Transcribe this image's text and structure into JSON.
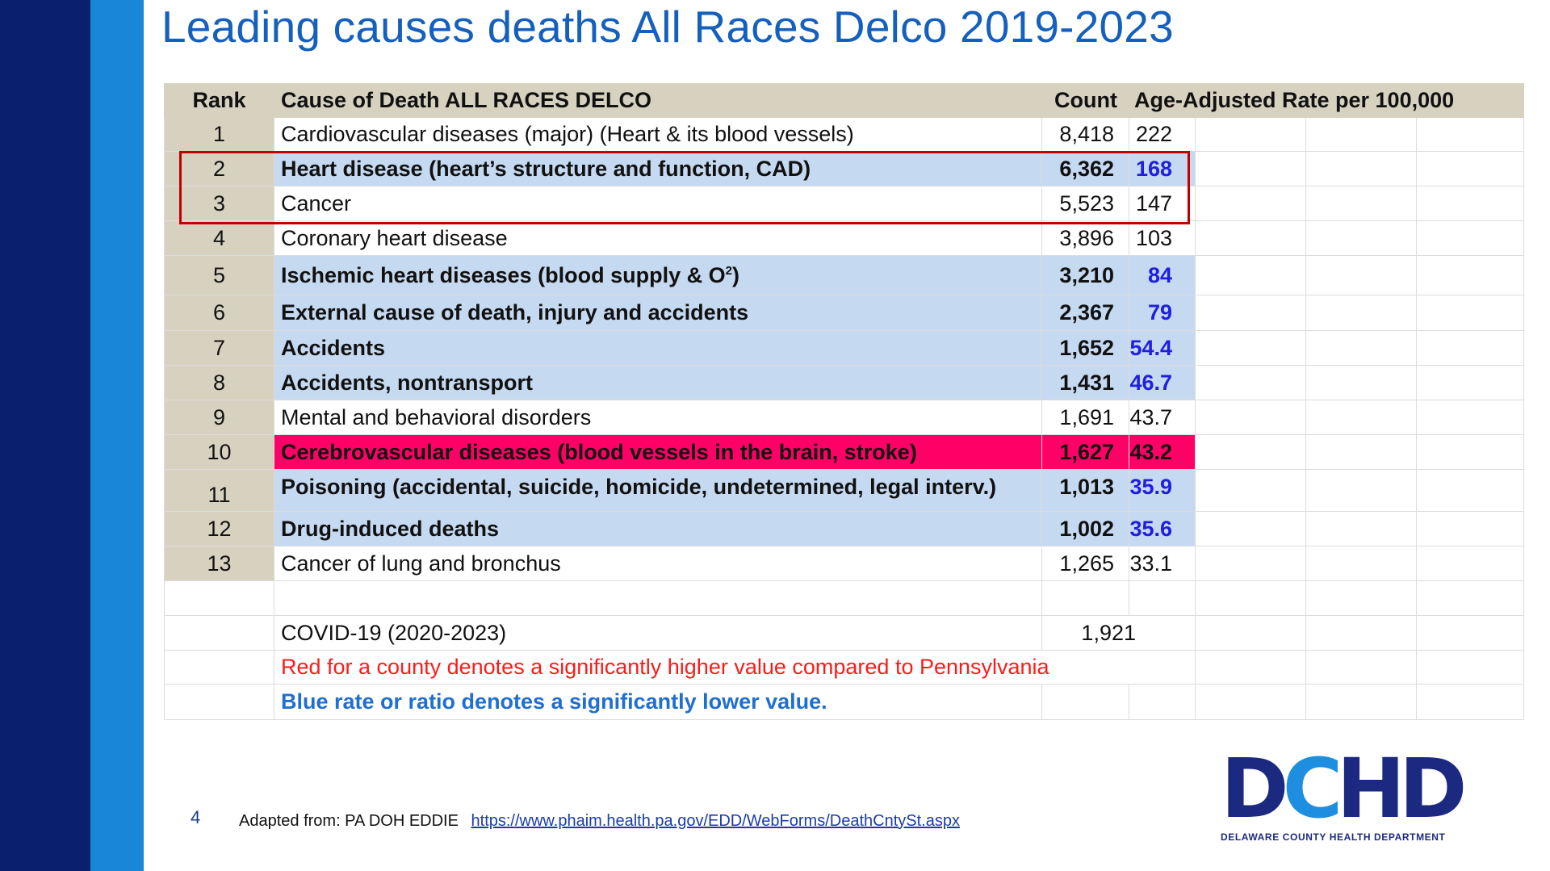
{
  "title": "Leading causes deaths All Races Delco 2019-2023",
  "table": {
    "headers": {
      "rank": "Rank",
      "cause": "Cause of Death ALL RACES DELCO",
      "count": "Count",
      "rate": "Age-Adjusted Rate per 100,000"
    },
    "rows": [
      {
        "rank": "1",
        "cause": "Cardiovascular diseases (major)  (Heart & its blood vessels)",
        "count": "8,418",
        "rate": "222"
      },
      {
        "rank": "2",
        "cause": "Heart disease (heart’s structure and function, CAD)",
        "count": "6,362",
        "rate": "168"
      },
      {
        "rank": "3",
        "cause": "Cancer",
        "count": "5,523",
        "rate": "147"
      },
      {
        "rank": "4",
        "cause": "Coronary heart disease",
        "count": "3,896",
        "rate": "103"
      },
      {
        "rank": "5",
        "cause": "Ischemic heart diseases (blood supply & O",
        "cause_sup": "2",
        "cause_end": ")",
        "count": "3,210",
        "rate": "84"
      },
      {
        "rank": "6",
        "cause": "External cause of death, injury and accidents",
        "count": "2,367",
        "rate": "79"
      },
      {
        "rank": "7",
        "cause": "Accidents",
        "count": "1,652",
        "rate": "54.4"
      },
      {
        "rank": "8",
        "cause": "Accidents, nontransport",
        "count": "1,431",
        "rate": "46.7"
      },
      {
        "rank": "9",
        "cause": "Mental and behavioral disorders",
        "count": "1,691",
        "rate": "43.7"
      },
      {
        "rank": "10",
        "cause": "Cerebrovascular diseases (blood vessels in the brain, stroke)",
        "count": "1,627",
        "rate": "43.2"
      },
      {
        "rank": "11",
        "cause": "Poisoning (accidental, suicide, homicide, undetermined, legal interv.)",
        "count": "1,013",
        "rate": "35.9"
      },
      {
        "rank": "12",
        "cause": "Drug-induced deaths",
        "count": "1,002",
        "rate": "35.6"
      },
      {
        "rank": "13",
        "cause": "Cancer of lung and bronchus",
        "count": "1,265",
        "rate": "33.1"
      }
    ],
    "covid": {
      "cause": "COVID-19 (2020-2023)",
      "count": "1,921"
    },
    "notes": {
      "red": "Red for a county denotes a significantly higher value compared to Pennsylvania",
      "blue": "Blue rate or ratio denotes a significantly lower value."
    }
  },
  "colors": {
    "blue_fill": "#c5d9f1",
    "pink_fill": "#ff0066",
    "rank_fill": "#d7d2c0",
    "highlight_border": "#c00000"
  },
  "footer": {
    "slide_number": "4",
    "source_label": "Adapted from: PA DOH EDDIE",
    "source_link": "https://www.phaim.health.pa.gov/EDD/WebForms/DeathCntySt.aspx"
  },
  "logo": {
    "letters_1": "D",
    "letters_2": "C",
    "letters_3": "HD",
    "subtitle": "DELAWARE COUNTY HEALTH DEPARTMENT"
  }
}
